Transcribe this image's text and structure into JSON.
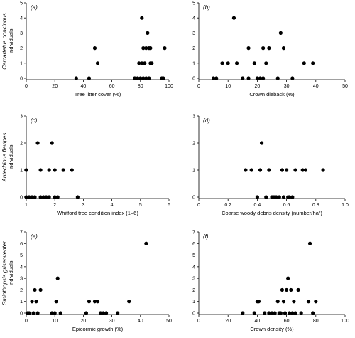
{
  "chart_data": [
    {
      "type": "scatter",
      "panel_label": "(a)",
      "xlabel": "Tree litter cover (%)",
      "row_title": "Cercartetus concinnus",
      "row_sub": "individuals",
      "xlim": [
        0,
        100
      ],
      "ylim": [
        0,
        5
      ],
      "xticks": [
        "0",
        "20",
        "40",
        "60",
        "80",
        "100"
      ],
      "yticks": [
        "0",
        "1",
        "2",
        "3",
        "4",
        "5"
      ],
      "x": [
        35,
        44,
        48,
        50,
        76,
        78,
        79,
        80,
        81,
        81,
        82,
        82,
        83,
        84,
        84,
        85,
        86,
        86,
        87,
        87,
        88,
        95,
        96,
        97
      ],
      "y": [
        0,
        0,
        2,
        1,
        0,
        0,
        1,
        0,
        1,
        4,
        0,
        2,
        1,
        0,
        2,
        3,
        0,
        2,
        1,
        2,
        1,
        0,
        0,
        2
      ]
    },
    {
      "type": "scatter",
      "panel_label": "(b)",
      "xlabel": "Crown dieback (%)",
      "xlim": [
        0,
        50
      ],
      "ylim": [
        0,
        5
      ],
      "xticks": [
        "0",
        "10",
        "20",
        "30",
        "40",
        "50"
      ],
      "yticks": [
        "0",
        "1",
        "2",
        "3",
        "4",
        "5"
      ],
      "x": [
        5,
        6,
        8,
        10,
        12,
        13,
        15,
        17,
        17,
        19,
        20,
        21,
        22,
        22,
        23,
        24,
        27,
        28,
        29,
        32,
        36,
        39
      ],
      "y": [
        0,
        0,
        1,
        1,
        4,
        1,
        0,
        2,
        0,
        1,
        0,
        0,
        2,
        0,
        1,
        2,
        0,
        3,
        2,
        0,
        1,
        1
      ]
    },
    {
      "type": "scatter",
      "panel_label": "(c)",
      "xlabel": "Whitford tree condition index (1–6)",
      "row_title": "Antechinus flavipes",
      "row_sub": "individuals",
      "xlim": [
        1,
        6
      ],
      "ylim": [
        0,
        3
      ],
      "xticks": [
        "1",
        "2",
        "3",
        "4",
        "5",
        "6"
      ],
      "yticks": [
        "0",
        "1",
        "2",
        "3"
      ],
      "x": [
        1.0,
        1.0,
        1.1,
        1.2,
        1.3,
        1.4,
        1.5,
        1.5,
        1.6,
        1.7,
        1.8,
        1.8,
        1.9,
        2.0,
        2.0,
        2.1,
        2.3,
        2.6,
        2.8
      ],
      "y": [
        1,
        0,
        0,
        0,
        0,
        2,
        1,
        0,
        0,
        0,
        1,
        0,
        2,
        1,
        0,
        0,
        1,
        1,
        0
      ]
    },
    {
      "type": "scatter",
      "panel_label": "(d)",
      "xlabel": "Coarse woody debris density (number/ha²)",
      "xlim": [
        0,
        1
      ],
      "ylim": [
        0,
        3
      ],
      "xticks": [
        "0",
        "0.2",
        "0.4",
        "0.6",
        "0.8",
        "1.0"
      ],
      "yticks": [
        "0",
        "1",
        "2",
        "3"
      ],
      "x": [
        0.32,
        0.36,
        0.4,
        0.42,
        0.43,
        0.46,
        0.48,
        0.5,
        0.51,
        0.52,
        0.53,
        0.55,
        0.57,
        0.58,
        0.6,
        0.61,
        0.62,
        0.64,
        0.66,
        0.71,
        0.73,
        0.85
      ],
      "y": [
        1,
        1,
        0,
        1,
        2,
        0,
        1,
        0,
        0,
        0,
        0,
        0,
        1,
        0,
        1,
        0,
        0,
        0,
        1,
        1,
        1,
        1
      ]
    },
    {
      "type": "scatter",
      "panel_label": "(e)",
      "xlabel": "Epicormic growth (%)",
      "row_title": "Sminthopsis griseoventer",
      "row_sub": "individuals",
      "xlim": [
        0,
        50
      ],
      "ylim": [
        0,
        7
      ],
      "xticks": [
        "0",
        "10",
        "20",
        "30",
        "40",
        "50"
      ],
      "yticks": [
        "0",
        "1",
        "2",
        "3",
        "4",
        "5",
        "6",
        "7"
      ],
      "x": [
        0.5,
        1,
        2,
        2.5,
        3,
        3.5,
        4,
        5,
        9,
        10,
        10.5,
        11,
        12,
        21,
        22,
        24,
        25,
        26,
        27,
        28,
        32,
        36,
        42
      ],
      "y": [
        0,
        0,
        1,
        0,
        2,
        1,
        0,
        2,
        0,
        0,
        1,
        3,
        0,
        0,
        1,
        1,
        1,
        0,
        0,
        0,
        0,
        1,
        6
      ]
    },
    {
      "type": "scatter",
      "panel_label": "(f)",
      "xlabel": "Crown density (%)",
      "xlim": [
        0,
        100
      ],
      "ylim": [
        0,
        7
      ],
      "xticks": [
        "0",
        "20",
        "40",
        "60",
        "80",
        "100"
      ],
      "yticks": [
        "0",
        "1",
        "2",
        "3",
        "4",
        "5",
        "6",
        "7"
      ],
      "x": [
        30,
        38,
        40,
        41,
        45,
        48,
        50,
        52,
        54,
        55,
        56,
        57,
        58,
        59,
        60,
        61,
        62,
        63,
        64,
        65,
        66,
        68,
        70,
        75,
        76,
        78,
        80
      ],
      "y": [
        0,
        0,
        1,
        1,
        0,
        0,
        0,
        0,
        1,
        0,
        0,
        2,
        1,
        0,
        2,
        3,
        0,
        2,
        0,
        1,
        0,
        2,
        0,
        1,
        6,
        0,
        1
      ]
    }
  ]
}
